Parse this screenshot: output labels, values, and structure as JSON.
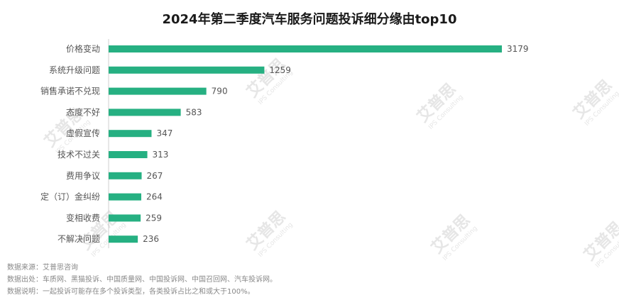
{
  "chart_data": {
    "type": "bar",
    "orientation": "horizontal",
    "title": "2024年第二季度汽车服务问题投诉细分缘由top10",
    "categories": [
      "价格变动",
      "系统升级问题",
      "销售承诺不兑现",
      "态度不好",
      "虚假宣传",
      "技术不过关",
      "费用争议",
      "定（订）金纠纷",
      "变相收费",
      "不解决问题"
    ],
    "values": [
      3179,
      1259,
      790,
      583,
      347,
      313,
      267,
      264,
      259,
      236
    ],
    "xlim": [
      0,
      3179
    ],
    "grid": false,
    "legend": "none"
  },
  "notes": {
    "source": "数据来源：艾普思咨询",
    "origin": "数据出处：车质网、黑猫投诉、中国质量网、中国投诉网、中国召回网、汽车投诉网。",
    "explain": "数据说明：一起投诉可能存在多个投诉类型，各类投诉占比之和或大于100%。"
  },
  "watermark": {
    "brand": "艾普思",
    "sub": "IPS Consulting"
  },
  "colors": {
    "bar": "#26b082"
  }
}
